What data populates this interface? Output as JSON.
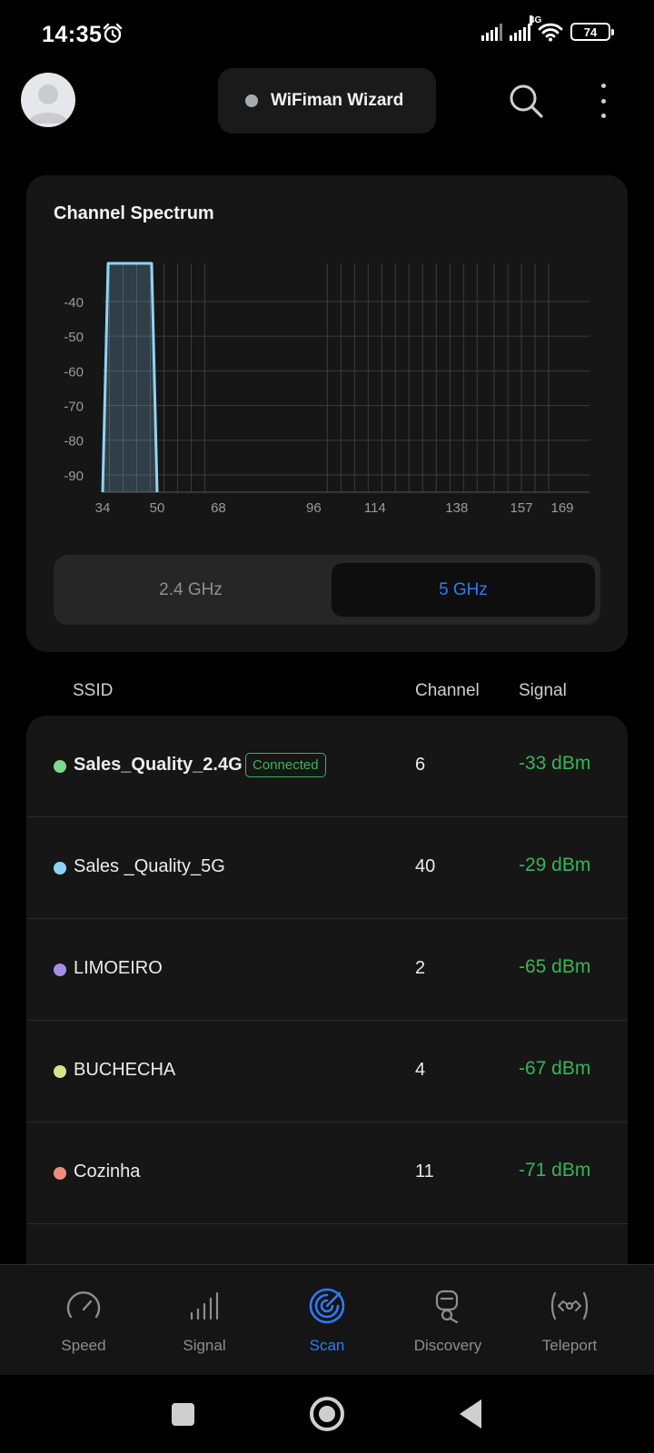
{
  "status_bar": {
    "time": "14:35",
    "network_type": "4G",
    "battery": "74",
    "icons": [
      "alarm-icon",
      "signal-icon",
      "signal-4g-icon",
      "wifi-icon",
      "battery-icon"
    ]
  },
  "header": {
    "wizard_label": "WiFiman Wizard",
    "icons": [
      "avatar-icon",
      "search-icon",
      "more-vert-icon"
    ]
  },
  "spectrum": {
    "title": "Channel Spectrum",
    "bands": [
      "2.4 GHz",
      "5 GHz"
    ],
    "selected_band": "5 GHz",
    "accent": "#2d7cf6"
  },
  "chart_data": {
    "type": "area",
    "title": "Channel Spectrum",
    "xlabel": "",
    "ylabel": "",
    "x_ticks": [
      "34",
      "50",
      "68",
      "96",
      "114",
      "138",
      "157",
      "169"
    ],
    "y_ticks": [
      "-40",
      "-50",
      "-60",
      "-70",
      "-80",
      "-90"
    ],
    "xlim": [
      34,
      177
    ],
    "ylim": [
      -95,
      -29
    ],
    "channel_lines": [
      36,
      40,
      44,
      48,
      52,
      56,
      60,
      64,
      100,
      104,
      108,
      112,
      116,
      120,
      124,
      128,
      132,
      136,
      140,
      144,
      149,
      153,
      157,
      161,
      165
    ],
    "series": [
      {
        "name": "Sales _Quality_5G",
        "color": "#8fd3f4",
        "channel_from": 34,
        "channel_to": 50,
        "peak_dbm": -29,
        "floor_dbm": -95
      }
    ],
    "grid": true
  },
  "list": {
    "headers": {
      "ssid": "SSID",
      "channel": "Channel",
      "signal": "Signal"
    },
    "networks": [
      {
        "ssid": "Sales_Quality_2.4G",
        "channel": "6",
        "signal": "-33 dBm",
        "color": "#7ed98d",
        "badge": "Connected",
        "bold": true
      },
      {
        "ssid": "Sales _Quality_5G",
        "channel": "40",
        "signal": "-29 dBm",
        "color": "#8fd3f4",
        "badge": "",
        "bold": false
      },
      {
        "ssid": "LIMOEIRO",
        "channel": "2",
        "signal": "-65 dBm",
        "color": "#a48ee8",
        "badge": "",
        "bold": false
      },
      {
        "ssid": "BUCHECHA",
        "channel": "4",
        "signal": "-67 dBm",
        "color": "#d6e58c",
        "badge": "",
        "bold": false
      },
      {
        "ssid": "Cozinha",
        "channel": "11",
        "signal": "-71 dBm",
        "color": "#ee8c80",
        "badge": "",
        "bold": false
      }
    ],
    "signal_color": "#35b656"
  },
  "bottom_nav": {
    "items": [
      {
        "label": "Speed",
        "icon": "speed-gauge-icon"
      },
      {
        "label": "Signal",
        "icon": "signal-bars-icon"
      },
      {
        "label": "Scan",
        "icon": "scan-radar-icon"
      },
      {
        "label": "Discovery",
        "icon": "discovery-icon"
      },
      {
        "label": "Teleport",
        "icon": "teleport-icon"
      }
    ],
    "active": "Scan"
  },
  "system_nav": {
    "icons": [
      "recents-icon",
      "home-icon",
      "back-icon"
    ]
  }
}
